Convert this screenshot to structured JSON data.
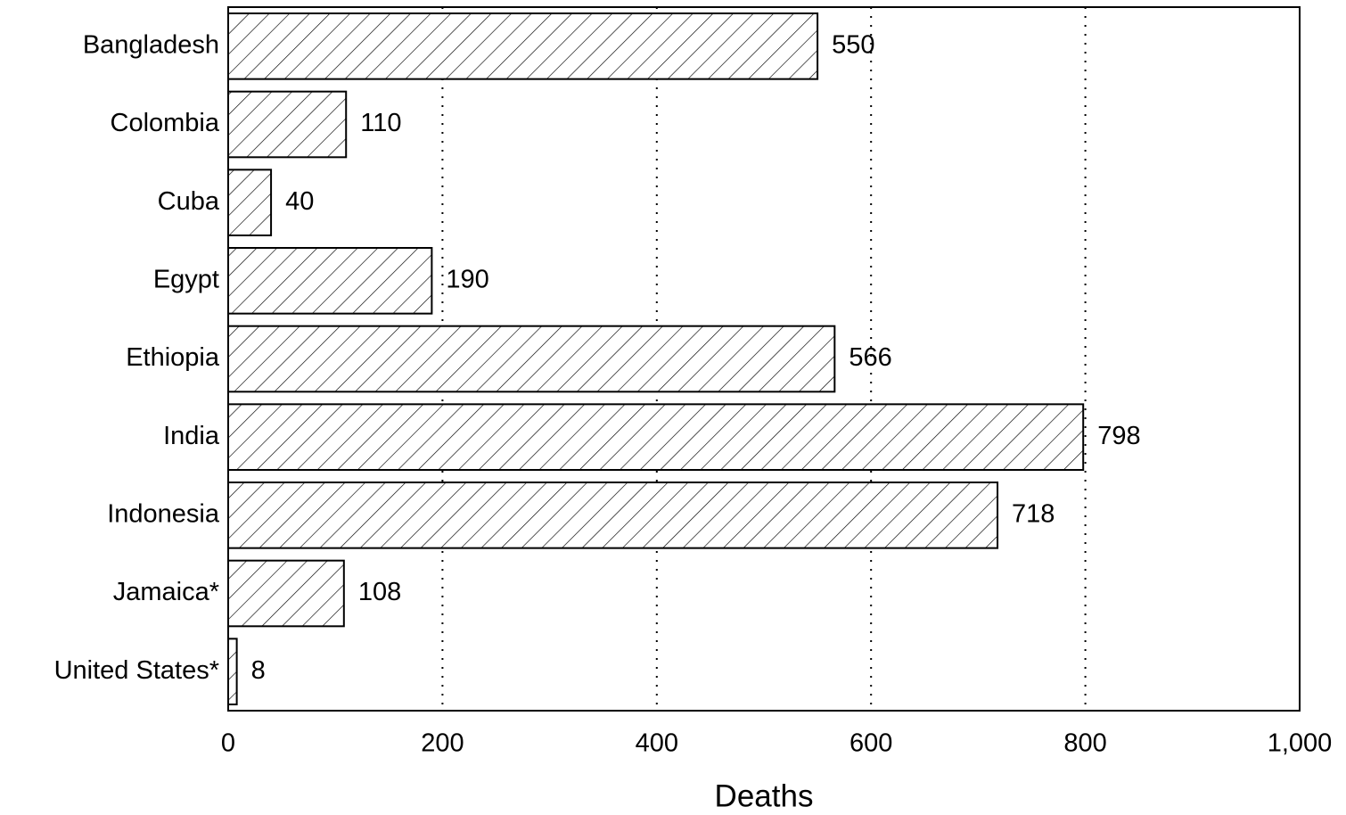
{
  "chart_data": {
    "type": "bar",
    "orientation": "horizontal",
    "x_label": "Deaths",
    "categories": [
      "Bangladesh",
      "Colombia",
      "Cuba",
      "Egypt",
      "Ethiopia",
      "India",
      "Indonesia",
      "Jamaica*",
      "United States*"
    ],
    "values": [
      550,
      110,
      40,
      190,
      566,
      798,
      718,
      108,
      8
    ],
    "color": "#000000",
    "xlim": [
      0,
      1000
    ],
    "xticks": [
      0,
      200,
      400,
      600,
      800,
      {
        "value": 1000,
        "label": "1,000"
      }
    ],
    "grid": true
  }
}
